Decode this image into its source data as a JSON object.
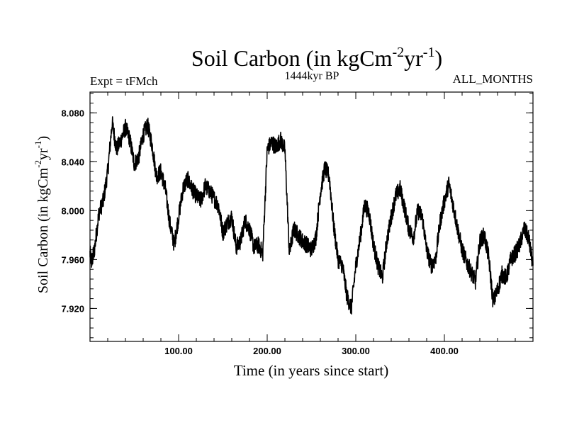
{
  "chart_data": {
    "type": "line",
    "title": "Soil Carbon (in kgCm",
    "title_sup1": "-2",
    "title_mid": "yr",
    "title_sup2": "-1",
    "title_end": ")",
    "subtitle_left": "Expt = tFMch",
    "subtitle_center": "1444kyr BP",
    "subtitle_right": "ALL_MONTHS",
    "xlabel": "Time (in years since start)",
    "ylabel": "Soil Carbon (in kgCm",
    "ylabel_sup1": "-2",
    "ylabel_mid": "yr",
    "ylabel_sup2": "-1",
    "ylabel_end": ")",
    "xlim": [
      0,
      500
    ],
    "ylim": [
      7.893,
      8.097
    ],
    "xticks": [
      100,
      200,
      300,
      400
    ],
    "xtick_labels": [
      "100.00",
      "200.00",
      "300.00",
      "400.00"
    ],
    "yticks": [
      7.92,
      7.96,
      8.0,
      8.04,
      8.08
    ],
    "ytick_labels": [
      "7.920",
      "7.960",
      "8.000",
      "8.040",
      "8.080"
    ],
    "grid": false,
    "line_color": "#000000",
    "series": [
      {
        "x": [
          0,
          2,
          5,
          10,
          15,
          20,
          25,
          30,
          35,
          40,
          45,
          50,
          55,
          60,
          65,
          70,
          75,
          80,
          85,
          90,
          95,
          100,
          105,
          110,
          115,
          120,
          125,
          130,
          135,
          140,
          145,
          150,
          155,
          160,
          165,
          170,
          175,
          180,
          185,
          190,
          195,
          200,
          205,
          210,
          215,
          220,
          225,
          230,
          235,
          240,
          245,
          250,
          255,
          260,
          265,
          270,
          275,
          280,
          285,
          290,
          295,
          300,
          305,
          310,
          315,
          320,
          325,
          330,
          335,
          340,
          345,
          350,
          355,
          360,
          365,
          370,
          375,
          380,
          385,
          390,
          395,
          400,
          405,
          410,
          415,
          420,
          425,
          430,
          435,
          440,
          445,
          450,
          455,
          460,
          465,
          470,
          475,
          480,
          485,
          490,
          495,
          500
        ],
        "values": [
          7.965,
          7.958,
          7.968,
          7.998,
          8.008,
          8.032,
          8.072,
          8.05,
          8.058,
          8.068,
          8.058,
          8.038,
          8.044,
          8.062,
          8.07,
          8.054,
          8.028,
          8.032,
          8.018,
          7.99,
          7.972,
          7.995,
          8.018,
          8.026,
          8.018,
          8.012,
          8.008,
          8.02,
          8.016,
          8.01,
          8.004,
          7.982,
          7.99,
          7.995,
          7.97,
          7.975,
          7.992,
          7.985,
          7.97,
          7.972,
          7.965,
          8.05,
          8.056,
          8.052,
          8.058,
          8.05,
          7.965,
          7.985,
          7.98,
          7.975,
          7.972,
          7.968,
          7.978,
          8.015,
          8.035,
          8.028,
          7.988,
          7.96,
          7.955,
          7.93,
          7.92,
          7.955,
          7.978,
          8.005,
          7.998,
          7.972,
          7.955,
          7.945,
          7.975,
          7.995,
          8.012,
          8.018,
          8.002,
          7.985,
          7.978,
          8.0,
          7.995,
          7.968,
          7.955,
          7.96,
          7.99,
          8.008,
          8.022,
          8.004,
          7.985,
          7.968,
          7.958,
          7.95,
          7.942,
          7.975,
          7.98,
          7.962,
          7.925,
          7.935,
          7.948,
          7.945,
          7.96,
          7.965,
          7.972,
          7.985,
          7.978,
          7.955
        ]
      }
    ]
  }
}
